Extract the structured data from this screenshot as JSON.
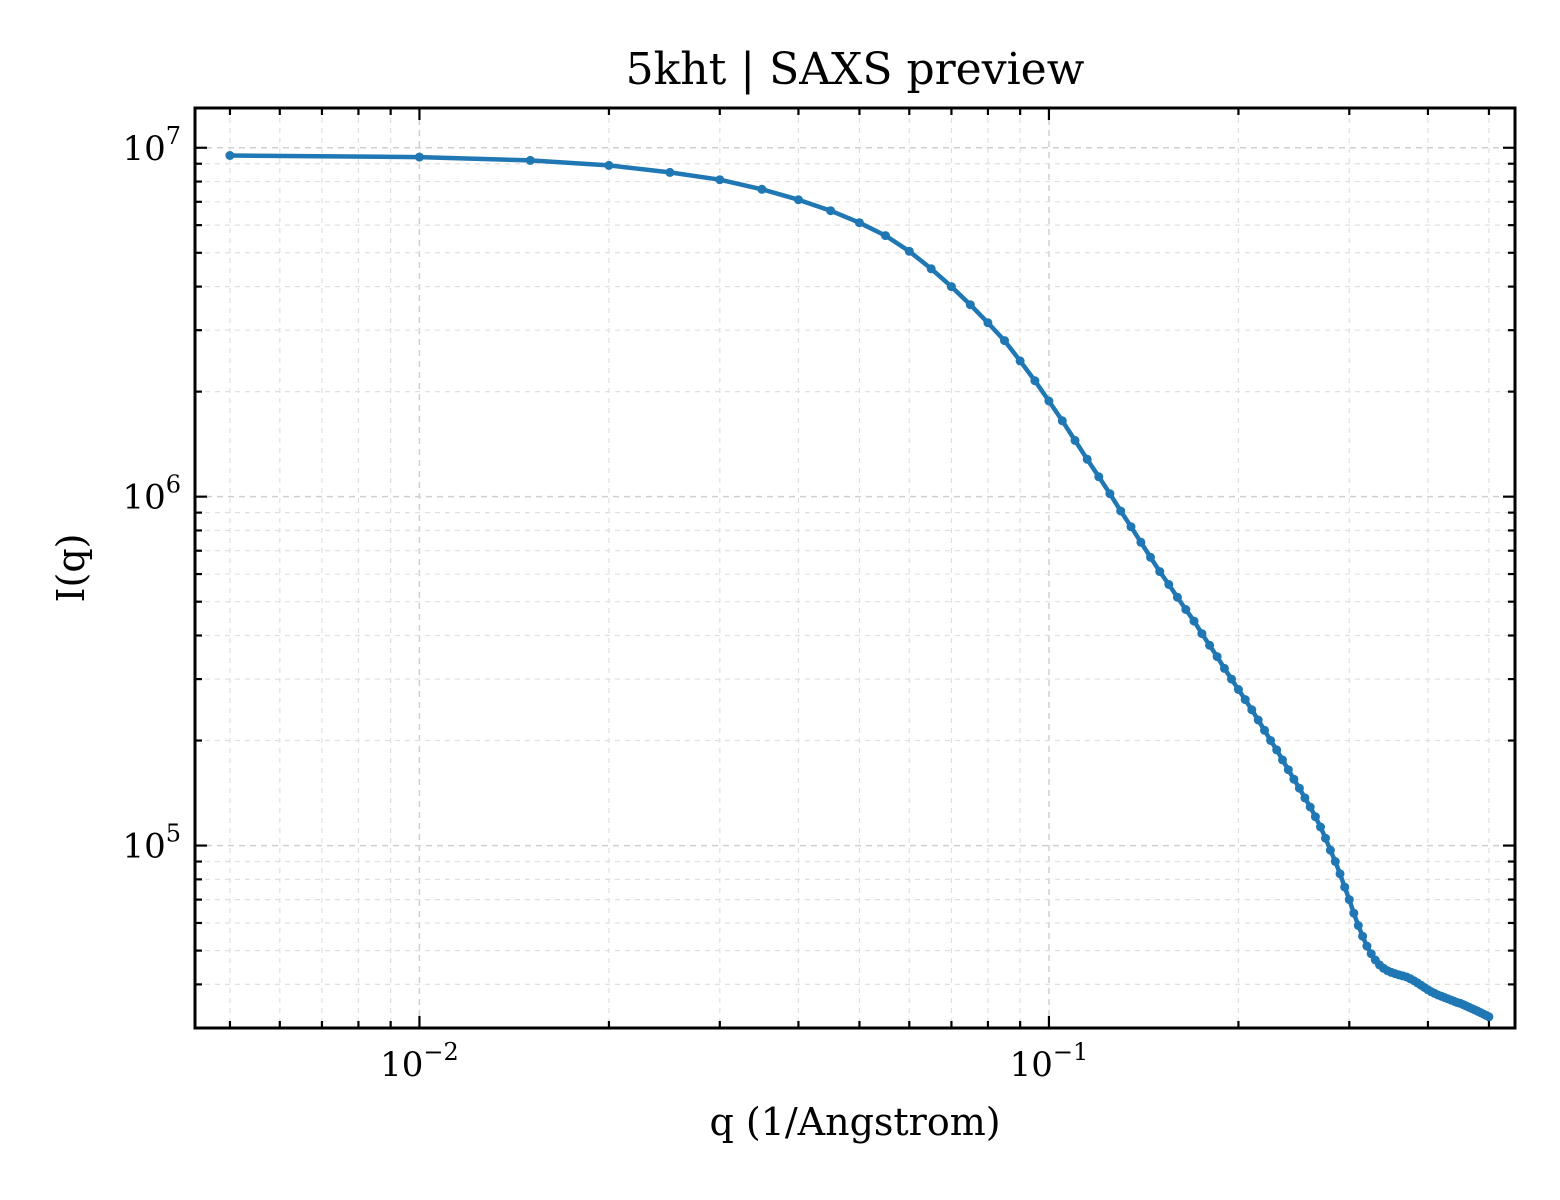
{
  "chart_data": {
    "type": "line",
    "title": "5kht | SAXS preview",
    "xlabel": "q (1/Angstrom)",
    "ylabel": "I(q)",
    "xscale": "log",
    "yscale": "log",
    "xlim": [
      0.0044,
      0.55
    ],
    "ylim": [
      30000,
      13000000
    ],
    "x_ticks": [
      {
        "value": 0.01,
        "base": "10",
        "exp": "−2"
      },
      {
        "value": 0.1,
        "base": "10",
        "exp": "−1"
      }
    ],
    "y_ticks": [
      {
        "value": 100000,
        "base": "10",
        "exp": "5"
      },
      {
        "value": 1000000,
        "base": "10",
        "exp": "6"
      },
      {
        "value": 10000000,
        "base": "10",
        "exp": "7"
      }
    ],
    "grid": true,
    "series_color": "#1f77b4",
    "series": [
      {
        "x": [
          0.005,
          0.01,
          0.015,
          0.02,
          0.025,
          0.03,
          0.035,
          0.04,
          0.045,
          0.05,
          0.055,
          0.06,
          0.065,
          0.07,
          0.075,
          0.08,
          0.085,
          0.09,
          0.095,
          0.1,
          0.105,
          0.11,
          0.115,
          0.12,
          0.125,
          0.13,
          0.135,
          0.14,
          0.145,
          0.15,
          0.155,
          0.16,
          0.165,
          0.17,
          0.175,
          0.18,
          0.185,
          0.19,
          0.195,
          0.2,
          0.205,
          0.21,
          0.215,
          0.22,
          0.225,
          0.23,
          0.235,
          0.24,
          0.245,
          0.25,
          0.255,
          0.26,
          0.265,
          0.27,
          0.275,
          0.28,
          0.285,
          0.29,
          0.295,
          0.3,
          0.305,
          0.31,
          0.315,
          0.32,
          0.325,
          0.33,
          0.335,
          0.34,
          0.345,
          0.35,
          0.355,
          0.36,
          0.365,
          0.37,
          0.375,
          0.38,
          0.385,
          0.39,
          0.395,
          0.4,
          0.405,
          0.41,
          0.415,
          0.42,
          0.425,
          0.43,
          0.435,
          0.44,
          0.445,
          0.45,
          0.455,
          0.46,
          0.465,
          0.47,
          0.475,
          0.48,
          0.485,
          0.49,
          0.495,
          0.5
        ],
        "y": [
          9500000,
          9400000,
          9200000,
          8900000,
          8500000,
          8100000,
          7600000,
          7100000,
          6600000,
          6100000,
          5600000,
          5050000,
          4500000,
          4000000,
          3550000,
          3150000,
          2800000,
          2450000,
          2150000,
          1880000,
          1650000,
          1450000,
          1280000,
          1140000,
          1020000,
          910000,
          820000,
          740000,
          670000,
          610000,
          560000,
          515000,
          475000,
          440000,
          405000,
          375000,
          348000,
          322000,
          300000,
          280000,
          262000,
          245000,
          229000,
          214000,
          200000,
          188000,
          176000,
          165000,
          155000,
          146000,
          137000,
          129000,
          121000,
          113000,
          105000,
          97000,
          90000,
          83000,
          76000,
          70000,
          64000,
          59000,
          55000,
          51500,
          49000,
          47000,
          45500,
          44500,
          43800,
          43300,
          42900,
          42600,
          42300,
          42000,
          41500,
          41000,
          40400,
          39800,
          39200,
          38600,
          38100,
          37700,
          37300,
          37000,
          36700,
          36400,
          36100,
          35800,
          35500,
          35300,
          35000,
          34700,
          34400,
          34100,
          33800,
          33500,
          33200,
          32900,
          32600,
          32300
        ]
      }
    ]
  }
}
